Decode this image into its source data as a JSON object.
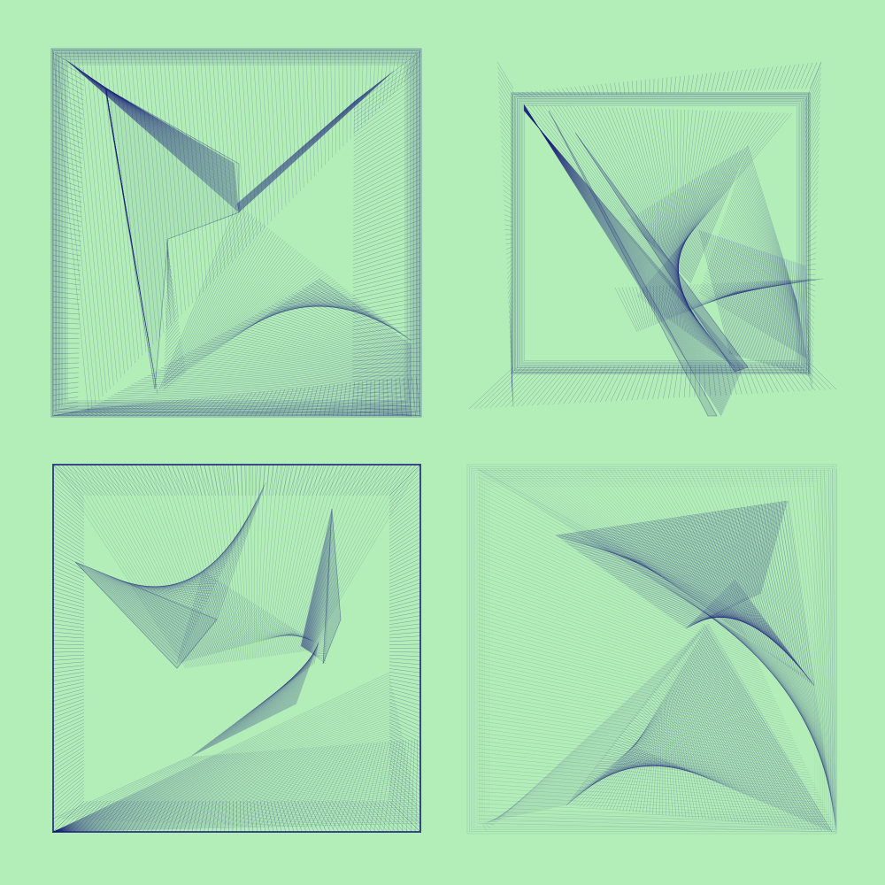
{
  "artwork": {
    "background_color": "#b3eeb8",
    "ink_color": "#1b1f7a",
    "panel_count": 4,
    "panels": [
      {
        "description_name": "framed-spiral-triangles",
        "style": "dense-line-fan"
      },
      {
        "description_name": "tilted-sharp-shards",
        "style": "dense-line-fan"
      },
      {
        "description_name": "folded-curve-shards",
        "style": "dense-line-fan"
      },
      {
        "description_name": "sweeping-curve-shards",
        "style": "dense-line-fan"
      }
    ]
  }
}
